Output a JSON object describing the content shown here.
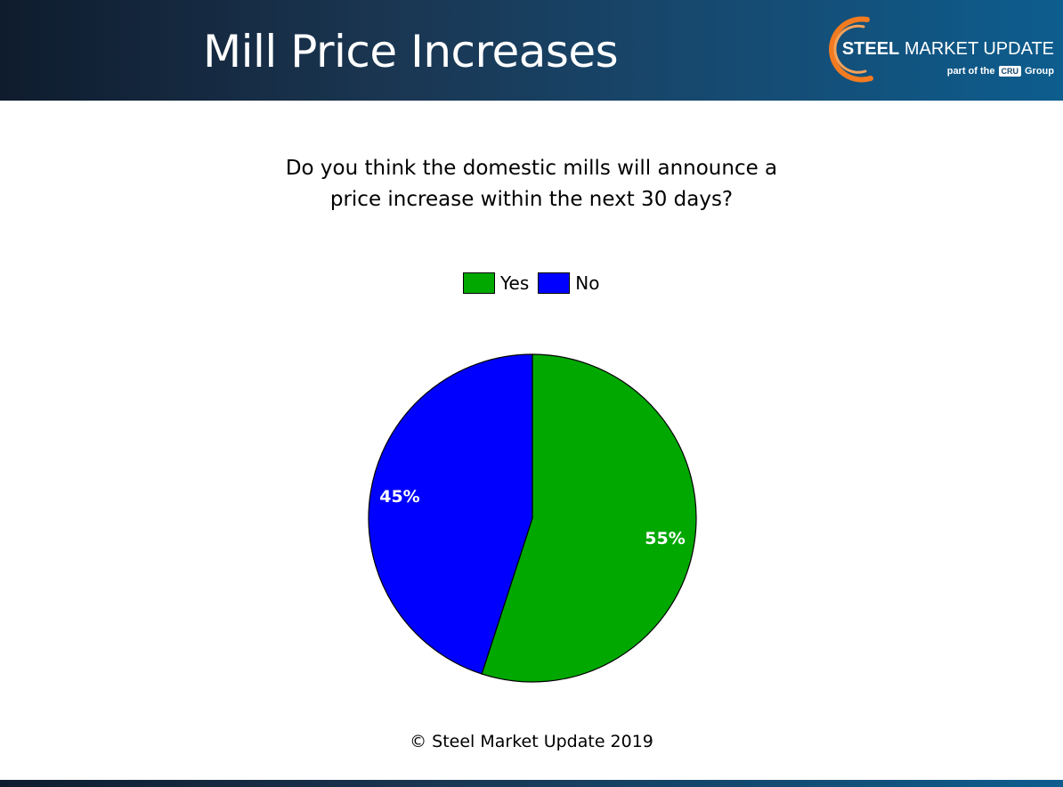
{
  "header": {
    "title": "Mill Price Increases",
    "brand_strong": "STEEL",
    "brand_rest": " MARKET UPDATE",
    "tag_prefix": "part of the",
    "tag_box": "CRU",
    "tag_suffix": "Group",
    "colors": {
      "bg_left": "#0f1c2e",
      "bg_right": "#0d5d8e",
      "swoosh": "#f27b21"
    }
  },
  "question": {
    "line1": "Do you think the domestic mills will announce a",
    "line2": "price increase within the next 30 days?"
  },
  "chart_data": {
    "type": "pie",
    "title": "Do you think the domestic mills will announce a price increase within the next 30 days?",
    "legend_position": "top",
    "slices": [
      {
        "label": "Yes",
        "value": 55,
        "display": "55%",
        "color": "#00a800"
      },
      {
        "label": "No",
        "value": 45,
        "display": "45%",
        "color": "#0000ff"
      }
    ]
  },
  "footer": {
    "copyright": "© Steel Market Update 2019"
  }
}
